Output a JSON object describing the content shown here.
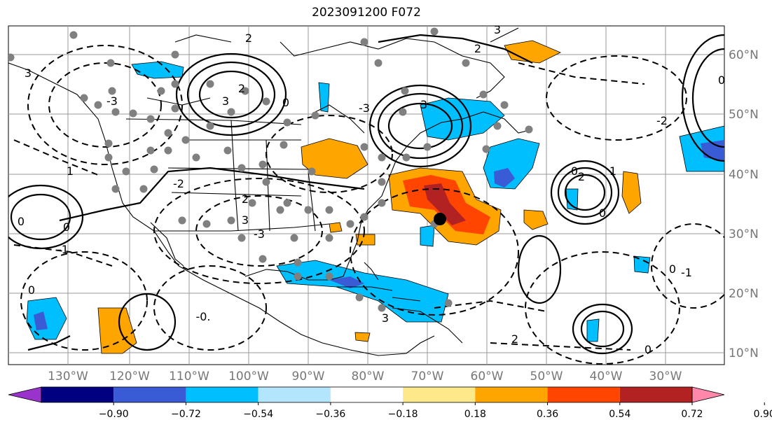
{
  "title": "2023091200 F072",
  "lon_labels": [
    "130°W",
    "120°W",
    "110°W",
    "100°W",
    "90°W",
    "80°W",
    "70°W",
    "60°W",
    "50°W",
    "40°W",
    "30°W"
  ],
  "lat_labels": [
    "60°N",
    "50°N",
    "40°N",
    "30°N",
    "20°N",
    "10°N"
  ],
  "colorbar": {
    "colors": [
      "#9933cc",
      "#000080",
      "#3a5bd6",
      "#00bfff",
      "#b3e5fc",
      "#ffffff",
      "#fde98a",
      "#ffa500",
      "#ff4500",
      "#b22222",
      "#ff88aa"
    ],
    "ticks": [
      "−0.90",
      "−0.72",
      "−0.54",
      "−0.36",
      "−0.18",
      "0.18",
      "0.36",
      "0.54",
      "0.72",
      "0.90"
    ]
  },
  "contour_labels": [
    "2",
    "3",
    "-3",
    "3",
    "2",
    "0",
    "2",
    "3",
    "-3",
    "3",
    "0",
    "2",
    "1",
    "0",
    "-2",
    "0",
    "-1",
    "0",
    "1",
    "0",
    "0",
    "-1",
    "-2",
    "0",
    "-0."
  ],
  "storm_marker": "black-dot"
}
